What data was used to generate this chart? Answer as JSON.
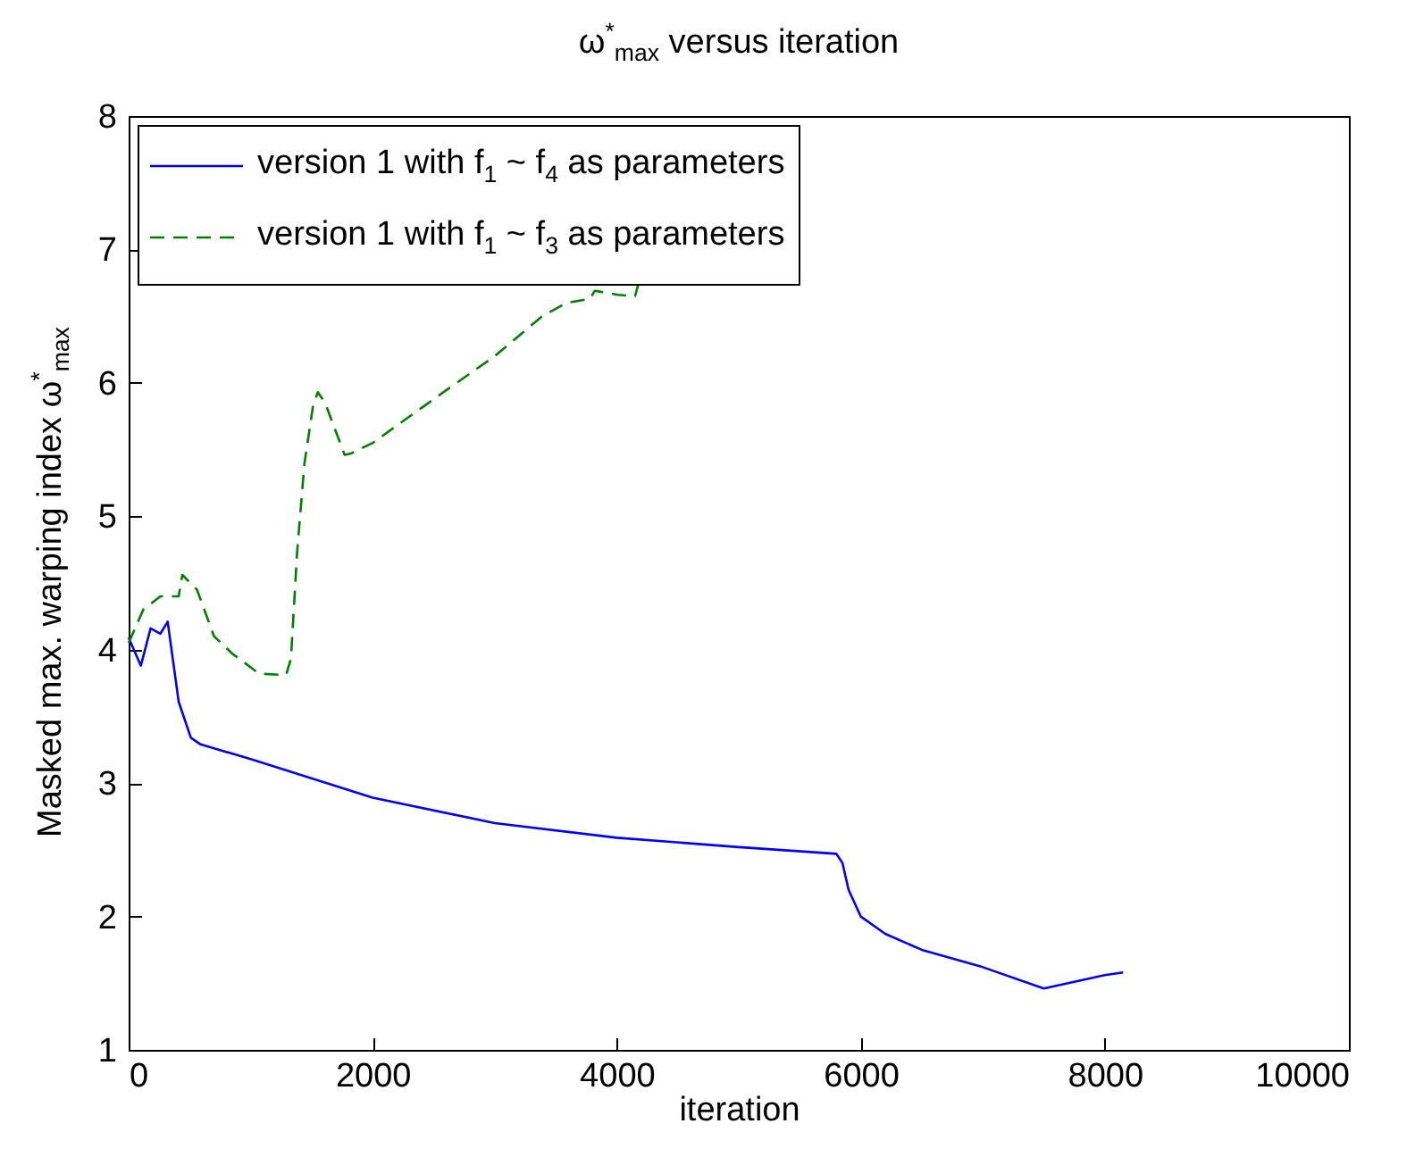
{
  "chart_data": {
    "type": "line",
    "title": "ω$^{*}$$_{max}$ versus iteration",
    "xlabel": "iteration",
    "ylabel": "Masked max. warping index ω$^{*}$$_{max}$",
    "xlim": [
      0,
      10000
    ],
    "xticks": [
      0,
      2000,
      4000,
      6000,
      8000,
      10000
    ],
    "ylim": [
      1,
      8
    ],
    "yticks": [
      1,
      2,
      3,
      4,
      5,
      6,
      7,
      8
    ],
    "grid": false,
    "legend": "top left",
    "series": [
      {
        "name": "version 1 with f$_{1}$ ~ f$_{4}$ as parameters",
        "color": "#0000ff",
        "line_style": "solid",
        "x": [
          0,
          100,
          180,
          260,
          320,
          410,
          510,
          590,
          1000,
          2000,
          3000,
          4000,
          5000,
          5800,
          5850,
          5900,
          6000,
          6200,
          6500,
          7000,
          7500,
          8000,
          8150
        ],
        "values": [
          4.09,
          3.88,
          4.16,
          4.12,
          4.21,
          3.61,
          3.34,
          3.29,
          3.18,
          2.89,
          2.7,
          2.59,
          2.52,
          2.47,
          2.4,
          2.2,
          2.0,
          1.87,
          1.75,
          1.62,
          1.46,
          1.56,
          1.58
        ]
      },
      {
        "name": "version 1 with f$_{1}$ ~ f$_{3}$ as parameters",
        "color": "#008000",
        "line_style": "dashed",
        "x": [
          0,
          120,
          260,
          410,
          440,
          560,
          700,
          850,
          1070,
          1290,
          1330,
          1380,
          1440,
          1510,
          1550,
          1610,
          1770,
          1820,
          2000,
          2610,
          3000,
          3390,
          3590,
          3780,
          3820,
          4010,
          4150,
          4180
        ],
        "values": [
          4.05,
          4.3,
          4.4,
          4.4,
          4.56,
          4.45,
          4.1,
          3.97,
          3.82,
          3.81,
          3.93,
          4.72,
          5.39,
          5.82,
          5.93,
          5.85,
          5.46,
          5.47,
          5.55,
          5.95,
          6.2,
          6.5,
          6.6,
          6.63,
          6.69,
          6.66,
          6.65,
          6.75
        ]
      }
    ]
  }
}
